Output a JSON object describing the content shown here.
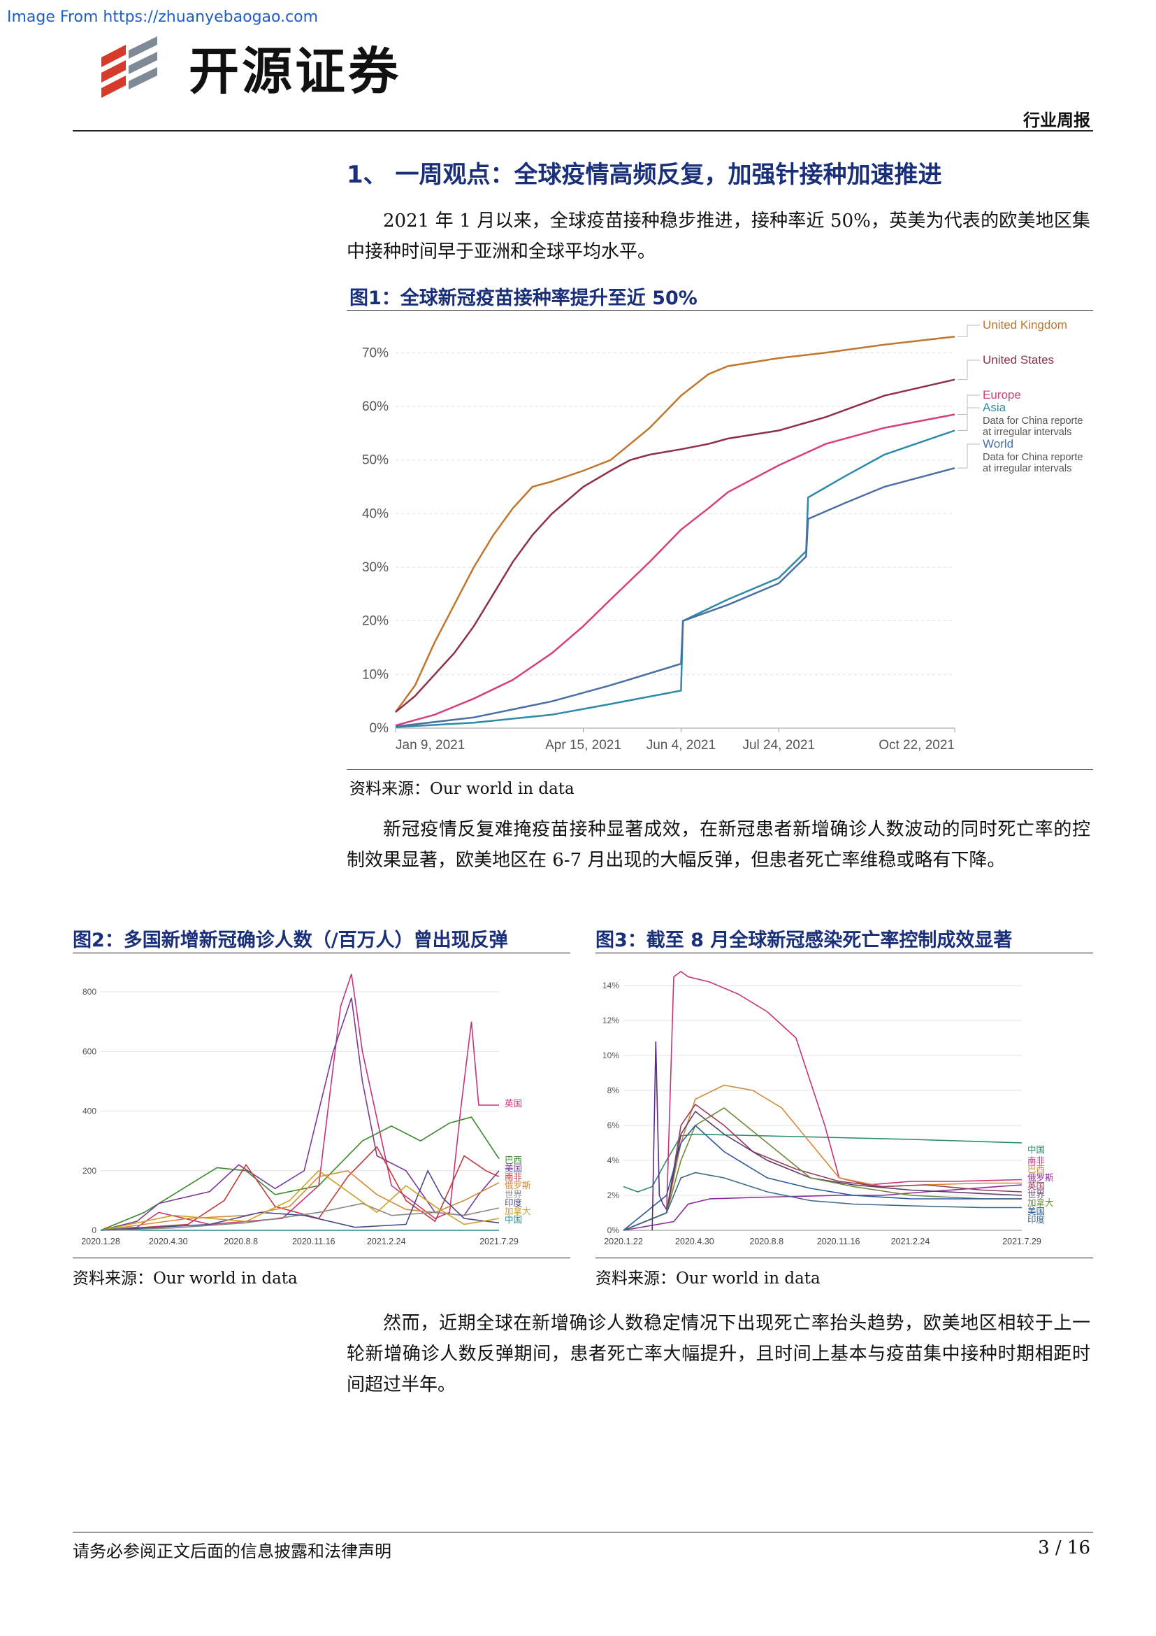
{
  "watermark": "Image From https://zhuanyebaogao.com",
  "brand": {
    "name": "开源证券"
  },
  "header": {
    "doc_type": "行业周报"
  },
  "section": {
    "title": "1、 一周观点：全球疫情高频反复，加强针接种加速推进"
  },
  "paragraphs": {
    "p1": "2021 年 1 月以来，全球疫苗接种稳步推进，接种率近 50%，英美为代表的欧美地区集中接种时间早于亚洲和全球平均水平。",
    "p2": "新冠疫情反复难掩疫苗接种显著成效，在新冠患者新增确诊人数波动的同时死亡率的控制效果显著，欧美地区在 6-7 月出现的大幅反弹，但患者死亡率维稳或略有下降。",
    "p3": "然而，近期全球在新增确诊人数稳定情况下出现死亡率抬头趋势，欧美地区相较于上一轮新增确诊人数反弹期间，患者死亡率大幅提升，且时间上基本与疫苗集中接种时期相距时间超过半年。"
  },
  "figures": {
    "fig1": {
      "title": "图1：全球新冠疫苗接种率提升至近 50%",
      "source": "资料来源：Our world in data"
    },
    "fig2": {
      "title": "图2：多国新增新冠确诊人数（/百万人）曾出现反弹",
      "source": "资料来源：Our world in data"
    },
    "fig3": {
      "title": "图3：截至 8 月全球新冠感染死亡率控制成效显著",
      "source": "资料来源：Our world in data"
    }
  },
  "chart_data": [
    {
      "type": "line",
      "ylim": [
        0,
        75
      ],
      "yticks": [
        "0%",
        "10%",
        "20%",
        "30%",
        "40%",
        "50%",
        "60%",
        "70%"
      ],
      "ytick_values": [
        0,
        10,
        20,
        30,
        40,
        50,
        60,
        70
      ],
      "xticks": [
        "Jan 9, 2021",
        "Apr 15, 2021",
        "Jun 4, 2021",
        "Jul 24, 2021",
        "Oct 22, 2021"
      ],
      "xtick_days": [
        0,
        96,
        146,
        196,
        286
      ],
      "xlim_days": [
        0,
        286
      ],
      "series": [
        {
          "name": "United Kingdom",
          "color": "#c0762c",
          "x": [
            0,
            10,
            20,
            30,
            40,
            50,
            60,
            70,
            80,
            96,
            110,
            120,
            130,
            146,
            160,
            170,
            196,
            220,
            250,
            286
          ],
          "y": [
            3,
            8,
            16,
            23,
            30,
            36,
            41,
            45,
            46,
            48,
            50,
            53,
            56,
            62,
            66,
            67.5,
            69,
            70,
            71.5,
            73
          ]
        },
        {
          "name": "United States",
          "color": "#8f3048",
          "x": [
            0,
            10,
            20,
            30,
            40,
            50,
            60,
            70,
            80,
            96,
            110,
            120,
            130,
            146,
            160,
            170,
            196,
            220,
            250,
            286
          ],
          "y": [
            3,
            6,
            10,
            14,
            19,
            25,
            31,
            36,
            40,
            45,
            48,
            50,
            51,
            52,
            53,
            54,
            55.5,
            58,
            62,
            65
          ]
        },
        {
          "name": "Europe",
          "color": "#d6407a",
          "x": [
            0,
            20,
            40,
            60,
            80,
            96,
            110,
            130,
            146,
            160,
            170,
            196,
            220,
            250,
            286
          ],
          "y": [
            0.5,
            2.5,
            5.5,
            9,
            14,
            19,
            24,
            31,
            37,
            41,
            44,
            49,
            53,
            56,
            58.5
          ]
        },
        {
          "name": "Asia",
          "color": "#2b8aa8",
          "x": [
            0,
            40,
            80,
            110,
            146,
            147,
            170,
            196,
            210,
            211,
            230,
            250,
            286
          ],
          "y": [
            0.2,
            1,
            2.5,
            4.5,
            7,
            20,
            24,
            28,
            33,
            43,
            47,
            51,
            55.5
          ]
        },
        {
          "name": "World",
          "color": "#4a6fa5",
          "x": [
            0,
            40,
            80,
            110,
            146,
            147,
            170,
            196,
            210,
            211,
            230,
            250,
            286
          ],
          "y": [
            0.3,
            2,
            5,
            8,
            12,
            20,
            23,
            27,
            32,
            39,
            42,
            45,
            48.5
          ]
        }
      ],
      "legend_labels": [
        "United Kingdom",
        "United States",
        "Europe",
        "Asia",
        "Data for China reporte",
        "at irregular intervals",
        "World",
        "Data for China reporte",
        "at irregular intervals"
      ]
    },
    {
      "type": "line",
      "ylim": [
        0,
        880
      ],
      "yticks": [
        "0",
        "200",
        "400",
        "600",
        "800"
      ],
      "ytick_values": [
        0,
        200,
        400,
        600,
        800
      ],
      "xticks": [
        "2020.1.28",
        "2020.4.30",
        "2020.8.8",
        "2020.11.16",
        "2021.2.24",
        "2021.7.29"
      ],
      "xlim": [
        0,
        548
      ],
      "xtick_pos": [
        0,
        93,
        193,
        293,
        393,
        548
      ],
      "series": [
        {
          "name": "英国",
          "color": "#c8327a",
          "x": [
            0,
            50,
            80,
            150,
            250,
            300,
            330,
            345,
            360,
            400,
            460,
            480,
            495,
            510,
            520,
            548
          ],
          "y": [
            0,
            10,
            60,
            20,
            40,
            150,
            750,
            860,
            600,
            150,
            40,
            60,
            400,
            700,
            420,
            420
          ]
        },
        {
          "name": "巴西",
          "color": "#3a8a2a",
          "x": [
            0,
            60,
            100,
            160,
            200,
            240,
            300,
            360,
            400,
            440,
            480,
            510,
            548
          ],
          "y": [
            0,
            60,
            120,
            210,
            200,
            120,
            150,
            300,
            350,
            300,
            360,
            380,
            240
          ]
        },
        {
          "name": "美国",
          "color": "#7a3a9a",
          "x": [
            0,
            50,
            80,
            150,
            190,
            240,
            280,
            320,
            345,
            360,
            380,
            420,
            460,
            500,
            520,
            548
          ],
          "y": [
            0,
            30,
            90,
            130,
            220,
            140,
            200,
            600,
            780,
            500,
            250,
            200,
            60,
            50,
            120,
            200
          ]
        },
        {
          "name": "南非",
          "color": "#c03a3a",
          "x": [
            0,
            120,
            170,
            200,
            240,
            300,
            340,
            380,
            420,
            460,
            500,
            530,
            548
          ],
          "y": [
            0,
            20,
            100,
            220,
            80,
            40,
            180,
            280,
            100,
            30,
            250,
            200,
            180
          ]
        },
        {
          "name": "俄罗斯",
          "color": "#d08a3a",
          "x": [
            0,
            120,
            200,
            260,
            300,
            340,
            380,
            420,
            460,
            500,
            548
          ],
          "y": [
            0,
            40,
            50,
            80,
            180,
            200,
            120,
            70,
            60,
            100,
            160
          ]
        },
        {
          "name": "世界",
          "color": "#888888",
          "x": [
            0,
            100,
            200,
            300,
            360,
            400,
            460,
            500,
            548
          ],
          "y": [
            0,
            8,
            25,
            60,
            90,
            50,
            60,
            50,
            75
          ]
        },
        {
          "name": "印度",
          "color": "#4a4a8a",
          "x": [
            0,
            150,
            220,
            280,
            350,
            420,
            450,
            470,
            500,
            548
          ],
          "y": [
            0,
            20,
            60,
            50,
            10,
            20,
            200,
            110,
            40,
            25
          ]
        },
        {
          "name": "加拿大",
          "color": "#d0a020",
          "x": [
            0,
            80,
            100,
            200,
            260,
            300,
            380,
            420,
            460,
            500,
            548
          ],
          "y": [
            0,
            40,
            50,
            30,
            100,
            200,
            60,
            150,
            80,
            20,
            40
          ]
        },
        {
          "name": "中国",
          "color": "#2a8a8a",
          "x": [
            0,
            20,
            40,
            60,
            548
          ],
          "y": [
            0,
            5,
            2,
            0,
            0
          ]
        }
      ]
    },
    {
      "type": "line",
      "ylim": [
        0,
        15
      ],
      "yticks": [
        "0%",
        "2%",
        "4%",
        "6%",
        "8%",
        "10%",
        "12%",
        "14%"
      ],
      "ytick_values": [
        0,
        2,
        4,
        6,
        8,
        10,
        12,
        14
      ],
      "xticks": [
        "2020.1.22",
        "2020.4.30",
        "2020.8.8",
        "2020.11.16",
        "2021.2.24",
        "2021.7.29"
      ],
      "xlim": [
        0,
        554
      ],
      "xtick_pos": [
        0,
        99,
        199,
        299,
        399,
        554
      ],
      "series": [
        {
          "name": "中国",
          "color": "#2a8a6a",
          "x": [
            0,
            20,
            40,
            60,
            80,
            100,
            200,
            300,
            400,
            554
          ],
          "y": [
            2.5,
            2.2,
            2.5,
            4,
            5.4,
            5.5,
            5.4,
            5.3,
            5.2,
            5.0
          ]
        },
        {
          "name": "南非",
          "color": "#c8327a",
          "x": [
            0,
            60,
            70,
            80,
            90,
            120,
            160,
            200,
            240,
            280,
            300,
            340,
            400,
            460,
            554
          ],
          "y": [
            0,
            1,
            14.5,
            14.8,
            14.5,
            14.2,
            13.5,
            12.5,
            11,
            6,
            3,
            2.6,
            2.8,
            2.8,
            2.9
          ]
        },
        {
          "name": "巴西",
          "color": "#d08a3a",
          "x": [
            0,
            60,
            80,
            100,
            140,
            180,
            220,
            260,
            300,
            360,
            420,
            500,
            554
          ],
          "y": [
            0,
            1,
            5,
            7.5,
            8.3,
            8,
            7,
            5,
            3,
            2.5,
            2.6,
            2.7,
            2.7
          ]
        },
        {
          "name": "俄罗斯",
          "color": "#8a2a9a",
          "x": [
            0,
            70,
            90,
            120,
            200,
            300,
            360,
            420,
            554
          ],
          "y": [
            0,
            0.5,
            1.5,
            1.8,
            1.9,
            2.0,
            2.0,
            2.2,
            2.6
          ]
        },
        {
          "name": "英国",
          "color": "#9a3a5a",
          "x": [
            0,
            60,
            80,
            100,
            140,
            180,
            240,
            300,
            360,
            420,
            500,
            554
          ],
          "y": [
            0,
            1,
            6,
            7.2,
            6,
            4.5,
            3.5,
            2.8,
            2.5,
            2.6,
            2.3,
            2.2
          ]
        },
        {
          "name": "世界",
          "color": "#5a3a6a",
          "x": [
            0,
            60,
            80,
            100,
            140,
            200,
            260,
            320,
            400,
            500,
            554
          ],
          "y": [
            0,
            1,
            5.5,
            6.8,
            5.5,
            4,
            3,
            2.6,
            2.3,
            2.1,
            2.0
          ]
        },
        {
          "name": "加拿大",
          "color": "#6a8a3a",
          "x": [
            0,
            60,
            80,
            100,
            140,
            200,
            260,
            320,
            400,
            500,
            554
          ],
          "y": [
            0,
            1,
            4,
            6,
            7,
            5,
            3,
            2.5,
            2,
            1.8,
            1.8
          ]
        },
        {
          "name": "美国",
          "color": "#2a5a9a",
          "x": [
            0,
            60,
            80,
            100,
            140,
            200,
            260,
            320,
            400,
            500,
            554
          ],
          "y": [
            0,
            2,
            5,
            6,
            4.5,
            3,
            2.4,
            2,
            1.8,
            1.8,
            1.8
          ]
        },
        {
          "name": "印度",
          "color": "#3a6a8a",
          "x": [
            0,
            60,
            80,
            100,
            140,
            200,
            260,
            320,
            400,
            500,
            554
          ],
          "y": [
            0,
            1,
            3,
            3.3,
            3,
            2.2,
            1.7,
            1.5,
            1.4,
            1.3,
            1.3
          ]
        },
        {
          "name": "spike",
          "color": "#5a2a8a",
          "x": [
            40,
            45,
            50,
            55,
            60
          ],
          "y": [
            0,
            10.8,
            2,
            1.5,
            1.2
          ]
        }
      ]
    }
  ],
  "footer": {
    "disclaimer": "请务必参阅正文后面的信息披露和法律声明",
    "page": "3 / 16"
  }
}
